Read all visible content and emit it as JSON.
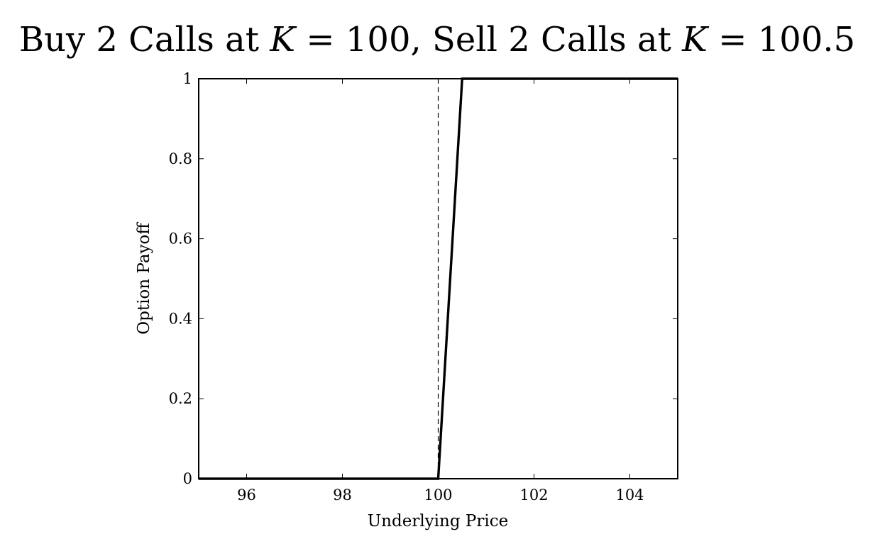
{
  "chart_data": {
    "type": "line",
    "title_parts": [
      {
        "text": "Buy 2 Calls at ",
        "math": false
      },
      {
        "text": "K",
        "math": true
      },
      {
        "text": " = 100, Sell 2 Calls at ",
        "math": false
      },
      {
        "text": "K",
        "math": true
      },
      {
        "text": " = 100.5",
        "math": false
      }
    ],
    "xlabel": "Underlying Price",
    "ylabel": "Option Payoff",
    "xlim": [
      95,
      105
    ],
    "ylim": [
      0,
      1
    ],
    "xticks": [
      96,
      98,
      100,
      102,
      104
    ],
    "yticks": [
      0,
      0.2,
      0.4,
      0.6,
      0.8,
      1
    ],
    "ytick_labels": [
      "0",
      "0.2",
      "0.4",
      "0.6",
      "0.8",
      "1"
    ],
    "grid": false,
    "series": [
      {
        "style": "solid-thick",
        "color": "#000000",
        "x": [
          95,
          100,
          100.5,
          105
        ],
        "y": [
          0,
          0,
          1,
          1
        ]
      }
    ],
    "reference_lines": [
      {
        "orientation": "vertical",
        "x": 100,
        "style": "dashed",
        "color": "#000000"
      }
    ]
  }
}
